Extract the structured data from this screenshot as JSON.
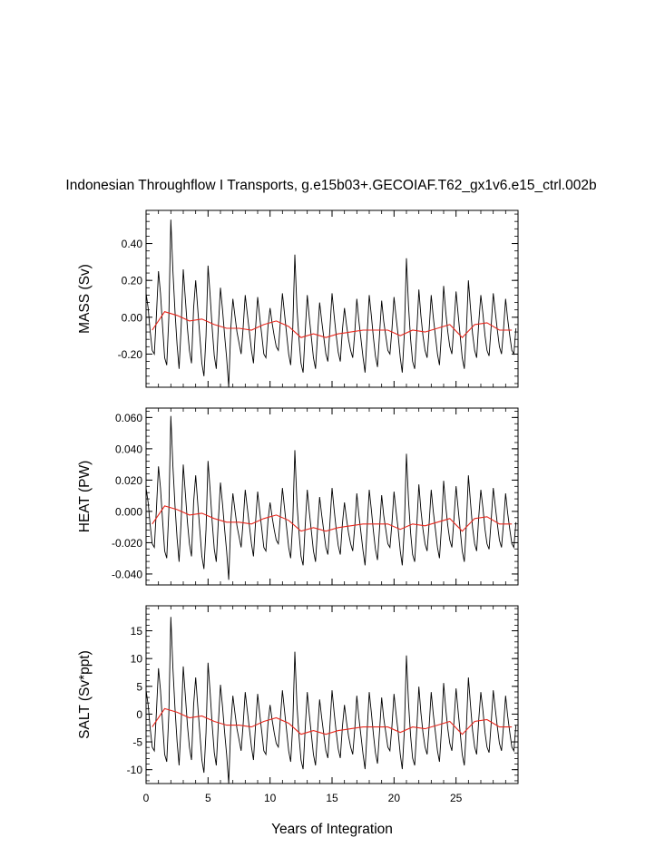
{
  "chart_data": {
    "type": "line",
    "title": "Indonesian Throughflow I Transports, g.e15b03+.GECOIAF.T62_gx1v6.e15_ctrl.002b",
    "xlabel": "Years of Integration",
    "xlim": [
      0,
      30
    ],
    "xticks": [
      0,
      5,
      10,
      15,
      20,
      25
    ],
    "xtick_labels": [
      "0",
      "5",
      "10",
      "15",
      "20",
      "25"
    ],
    "grid": false,
    "series_colors": {
      "monthly": "#000000",
      "annual_mean": "#e8261c"
    },
    "panels": [
      {
        "ylabel": "MASS (Sv)",
        "ylim": [
          -0.38,
          0.58
        ],
        "yticks": [
          -0.2,
          0,
          0.2,
          0.4
        ],
        "ytick_labels": [
          "-0.20",
          "0.00",
          "0.20",
          "0.40"
        ],
        "scale": 1.0,
        "offset": 0.0
      },
      {
        "ylabel": "HEAT (PW)",
        "ylim": [
          -0.047,
          0.066
        ],
        "yticks": [
          -0.04,
          -0.02,
          0,
          0.02,
          0.04,
          0.06
        ],
        "ytick_labels": [
          "-0.040",
          "-0.020",
          "0.000",
          "0.020",
          "0.040",
          "0.060"
        ],
        "scale": 0.115,
        "offset": 0.0
      },
      {
        "ylabel": "SALT (Sv*ppt)",
        "ylim": [
          -12.5,
          19.5
        ],
        "yticks": [
          -10,
          -5,
          0,
          5,
          10,
          15
        ],
        "ytick_labels": [
          "-10",
          "-5",
          "0",
          "5",
          "10",
          "15"
        ],
        "scale": 33.0,
        "offset": 0.0
      }
    ],
    "annual_mean_mass": [
      -0.07,
      0.03,
      0.01,
      -0.02,
      -0.01,
      -0.04,
      -0.06,
      -0.06,
      -0.07,
      -0.04,
      -0.02,
      -0.05,
      -0.11,
      -0.09,
      -0.11,
      -0.09,
      -0.08,
      -0.07,
      -0.07,
      -0.07,
      -0.1,
      -0.07,
      -0.08,
      -0.06,
      -0.04,
      -0.11,
      -0.04,
      -0.03,
      -0.07,
      -0.07
    ],
    "monthly_mass": [
      0.13,
      0.05,
      -0.08,
      -0.18,
      -0.2,
      0.01,
      0.25,
      0.13,
      -0.05,
      -0.22,
      -0.26,
      0.0,
      0.53,
      0.25,
      0.03,
      -0.15,
      -0.28,
      -0.05,
      0.26,
      0.1,
      -0.06,
      -0.18,
      -0.25,
      0.05,
      0.2,
      0.05,
      -0.1,
      -0.25,
      -0.32,
      -0.1,
      0.28,
      0.12,
      -0.06,
      -0.21,
      -0.28,
      -0.05,
      0.16,
      0.04,
      -0.1,
      -0.22,
      -0.38,
      -0.06,
      0.1,
      0.01,
      -0.08,
      -0.14,
      -0.2,
      -0.05,
      0.12,
      0.02,
      -0.08,
      -0.18,
      -0.25,
      -0.06,
      0.11,
      0.0,
      -0.1,
      -0.2,
      -0.22,
      -0.05,
      0.05,
      -0.03,
      -0.1,
      -0.16,
      -0.18,
      -0.02,
      0.13,
      0.02,
      -0.09,
      -0.2,
      -0.26,
      -0.06,
      0.34,
      0.05,
      -0.12,
      -0.25,
      -0.3,
      -0.08,
      0.12,
      0.0,
      -0.11,
      -0.22,
      -0.28,
      -0.09,
      0.08,
      -0.02,
      -0.11,
      -0.2,
      -0.24,
      -0.06,
      0.13,
      0.01,
      -0.1,
      -0.19,
      -0.24,
      -0.07,
      0.05,
      -0.04,
      -0.12,
      -0.18,
      -0.22,
      -0.08,
      0.1,
      -0.02,
      -0.12,
      -0.22,
      -0.3,
      -0.09,
      0.12,
      0.01,
      -0.11,
      -0.21,
      -0.27,
      -0.09,
      0.09,
      -0.02,
      -0.1,
      -0.18,
      -0.2,
      -0.06,
      0.11,
      0.0,
      -0.1,
      -0.22,
      -0.3,
      -0.09,
      0.32,
      0.06,
      -0.12,
      -0.24,
      -0.28,
      -0.08,
      0.15,
      0.01,
      -0.1,
      -0.18,
      -0.22,
      -0.06,
      0.12,
      0.0,
      -0.1,
      -0.2,
      -0.26,
      -0.08,
      0.17,
      0.03,
      -0.08,
      -0.16,
      -0.2,
      -0.04,
      0.14,
      0.02,
      -0.1,
      -0.22,
      -0.28,
      -0.07,
      0.2,
      0.05,
      -0.09,
      -0.18,
      -0.22,
      -0.03,
      0.12,
      0.02,
      -0.1,
      -0.18,
      -0.21,
      -0.05,
      0.13,
      0.03,
      -0.07,
      -0.16,
      -0.2,
      -0.06,
      0.1,
      -0.01,
      -0.1,
      -0.18,
      -0.2,
      -0.06
    ]
  }
}
